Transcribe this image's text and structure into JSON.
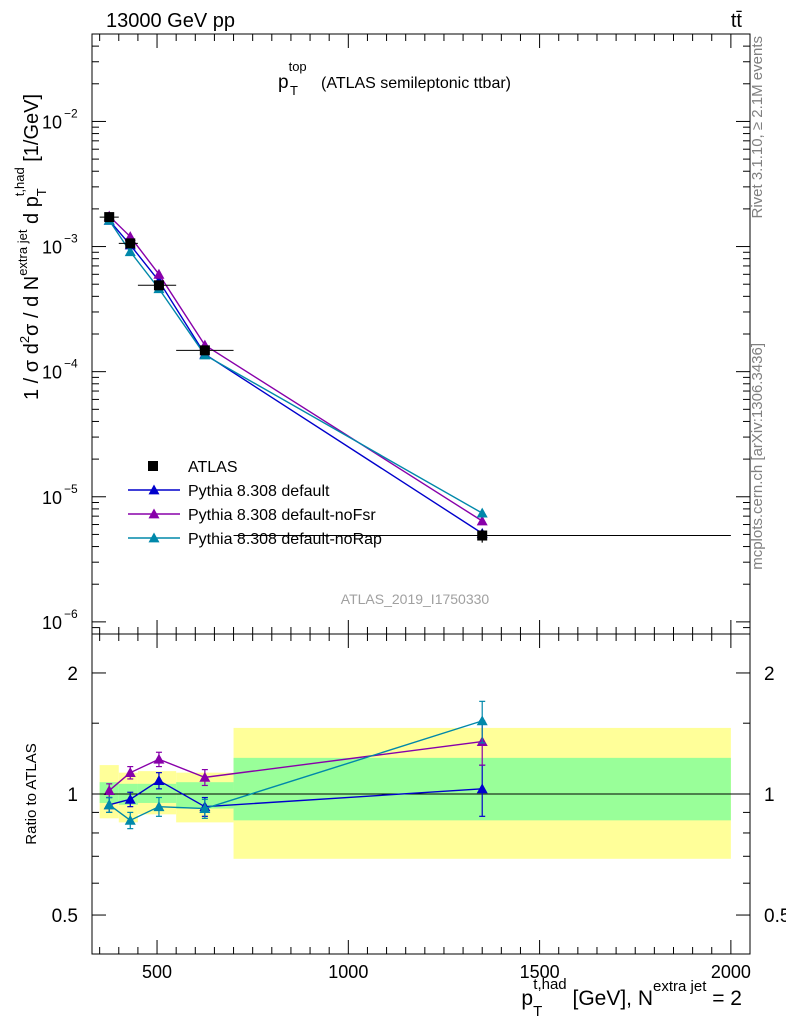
{
  "header": {
    "energy_label": "13000 GeV pp",
    "process_label": "tt̄"
  },
  "side": {
    "rivet_label": "Rivet 3.1.10, ≥ 2.1M events",
    "mcplots_label": "mcplots.cern.ch [arXiv:1306.3436]"
  },
  "chart_data": [
    {
      "type": "line",
      "panel": "main",
      "title_main": "p",
      "title_sup": "top",
      "title_sub": "T",
      "title_rest": "(ATLAS semileptonic ttbar)",
      "ylabel": "1 / σ d²σ / d N^{extra jet} d p_T^{t,had} [1/GeV]",
      "yscale": "log",
      "ylim": [
        8e-07,
        0.05
      ],
      "xlim": [
        330,
        2050
      ],
      "y_ticks": [
        {
          "v": 1e-06,
          "mant": "10",
          "exp": "−6"
        },
        {
          "v": 1e-05,
          "mant": "10",
          "exp": "−5"
        },
        {
          "v": 0.0001,
          "mant": "10",
          "exp": "−4"
        },
        {
          "v": 0.001,
          "mant": "10",
          "exp": "−3"
        },
        {
          "v": 0.01,
          "mant": "10",
          "exp": "−2"
        }
      ],
      "watermark": "ATLAS_2019_I1750330",
      "legend_position": "lower-left",
      "data": {
        "name": "ATLAS",
        "x": [
          375,
          430,
          505,
          625,
          1350
        ],
        "y": [
          0.00172,
          0.00106,
          0.00049,
          0.000148,
          4.9e-06
        ],
        "yerr": [
          8e-05,
          5e-05,
          3e-05,
          9e-06,
          6e-07
        ],
        "bins": [
          [
            350,
            400
          ],
          [
            400,
            450
          ],
          [
            450,
            550
          ],
          [
            550,
            700
          ],
          [
            700,
            2000
          ]
        ]
      },
      "series": [
        {
          "name": "Pythia 8.308 default",
          "color": "#0000cc",
          "marker": "triangle",
          "x": [
            375,
            430,
            505,
            625,
            1350
          ],
          "y": [
            0.00162,
            0.00103,
            0.00053,
            0.000138,
            5.1e-06
          ]
        },
        {
          "name": "Pythia 8.308 default-noFsr",
          "color": "#8800aa",
          "marker": "triangle",
          "x": [
            375,
            430,
            505,
            625,
            1350
          ],
          "y": [
            0.00175,
            0.0012,
            0.0006,
            0.000163,
            6.4e-06
          ]
        },
        {
          "name": "Pythia 8.308 default-noRap",
          "color": "#0088aa",
          "marker": "triangle",
          "x": [
            375,
            430,
            505,
            625,
            1350
          ],
          "y": [
            0.00162,
            0.00091,
            0.00046,
            0.000136,
            7.4e-06
          ]
        }
      ]
    },
    {
      "type": "line",
      "panel": "ratio",
      "ylabel": "Ratio to ATLAS",
      "yscale": "log",
      "ylim": [
        0.4,
        2.5
      ],
      "xlim": [
        330,
        2050
      ],
      "xlabel_main": "p",
      "xlabel_sub": "T",
      "xlabel_sup": "t,had",
      "xlabel_rest": " [GeV], N",
      "xlabel_sup2": "extra jet",
      "xlabel_end": " = 2",
      "x_ticks": [
        {
          "v": 500,
          "label": "500"
        },
        {
          "v": 1000,
          "label": "1000"
        },
        {
          "v": 1500,
          "label": "1500"
        },
        {
          "v": 2000,
          "label": "2000"
        }
      ],
      "y_ticks": [
        {
          "v": 0.5,
          "label": "0.5"
        },
        {
          "v": 1,
          "label": "1"
        },
        {
          "v": 2,
          "label": "2"
        }
      ],
      "bands": [
        {
          "x0": 350,
          "x1": 400,
          "yellow": [
            0.87,
            1.18
          ],
          "green": [
            0.95,
            1.07
          ]
        },
        {
          "x0": 400,
          "x1": 450,
          "yellow": [
            0.85,
            1.13
          ],
          "green": [
            0.94,
            1.06
          ]
        },
        {
          "x0": 450,
          "x1": 550,
          "yellow": [
            0.89,
            1.14
          ],
          "green": [
            0.95,
            1.06
          ]
        },
        {
          "x0": 550,
          "x1": 700,
          "yellow": [
            0.85,
            1.13
          ],
          "green": [
            0.92,
            1.07
          ]
        },
        {
          "x0": 700,
          "x1": 2000,
          "yellow": [
            0.69,
            1.46
          ],
          "green": [
            0.86,
            1.23
          ]
        }
      ],
      "series": [
        {
          "name": "Pythia 8.308 default",
          "color": "#0000cc",
          "x": [
            375,
            430,
            505,
            625,
            1350
          ],
          "y": [
            0.94,
            0.97,
            1.08,
            0.93,
            1.03
          ],
          "err": [
            0.04,
            0.04,
            0.05,
            0.05,
            0.15
          ]
        },
        {
          "name": "Pythia 8.308 default-noFsr",
          "color": "#8800aa",
          "x": [
            375,
            430,
            505,
            625,
            1350
          ],
          "y": [
            1.02,
            1.13,
            1.22,
            1.1,
            1.35
          ],
          "err": [
            0.04,
            0.04,
            0.05,
            0.05,
            0.17
          ]
        },
        {
          "name": "Pythia 8.308 default-noRap",
          "color": "#0088aa",
          "x": [
            375,
            430,
            505,
            625,
            1350
          ],
          "y": [
            0.94,
            0.86,
            0.93,
            0.92,
            1.52
          ],
          "err": [
            0.04,
            0.04,
            0.05,
            0.05,
            0.18
          ]
        }
      ]
    }
  ]
}
